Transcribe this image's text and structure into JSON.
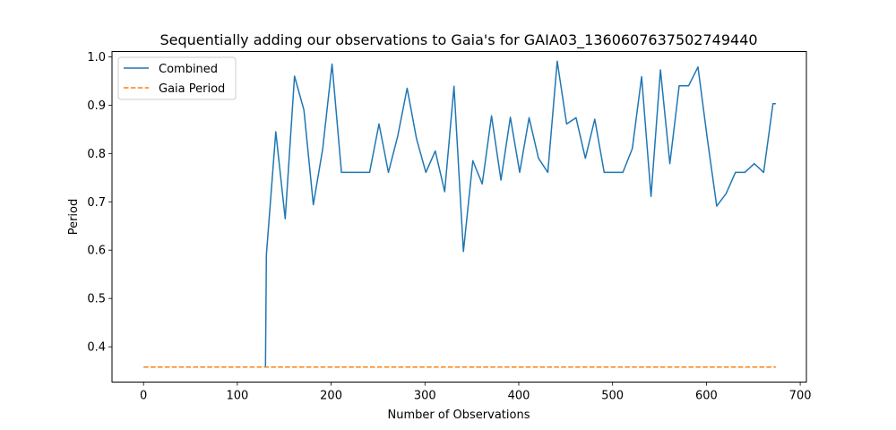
{
  "chart_data": {
    "type": "line",
    "title": "Sequentially adding our observations to Gaia's for GAIA03_1360607637502749440",
    "xlabel": "Number of Observations",
    "ylabel": "Period",
    "xlim": [
      -33.6,
      706.6
    ],
    "ylim": [
      0.327,
      1.011
    ],
    "xticks": [
      0,
      100,
      200,
      300,
      400,
      500,
      600,
      700
    ],
    "yticks": [
      0.4,
      0.5,
      0.6,
      0.7,
      0.8,
      0.9,
      1.0
    ],
    "xtick_labels": [
      "0",
      "100",
      "200",
      "300",
      "400",
      "500",
      "600",
      "700"
    ],
    "ytick_labels": [
      "0.4",
      "0.5",
      "0.6",
      "0.7",
      "0.8",
      "0.9",
      "1.0"
    ],
    "grid": false,
    "legend_position": "top-left",
    "series": [
      {
        "name": "Combined",
        "color": "#1f77b4",
        "style": "solid",
        "x": [
          130,
          131,
          141,
          151,
          161,
          171,
          181,
          191,
          201,
          211,
          221,
          231,
          241,
          251,
          261,
          271,
          281,
          291,
          301,
          311,
          321,
          331,
          341,
          351,
          361,
          371,
          381,
          391,
          401,
          411,
          421,
          431,
          441,
          451,
          461,
          471,
          481,
          491,
          501,
          511,
          521,
          531,
          541,
          551,
          561,
          571,
          581,
          591,
          601,
          611,
          621,
          631,
          641,
          651,
          661,
          671,
          674
        ],
        "y": [
          0.358,
          0.59,
          0.845,
          0.665,
          0.96,
          0.89,
          0.694,
          0.81,
          0.985,
          0.761,
          0.761,
          0.761,
          0.761,
          0.861,
          0.761,
          0.836,
          0.935,
          0.83,
          0.761,
          0.805,
          0.721,
          0.939,
          0.597,
          0.785,
          0.737,
          0.878,
          0.745,
          0.875,
          0.761,
          0.874,
          0.79,
          0.761,
          0.991,
          0.861,
          0.874,
          0.79,
          0.871,
          0.761,
          0.761,
          0.761,
          0.81,
          0.959,
          0.711,
          0.973,
          0.779,
          0.94,
          0.94,
          0.979,
          0.831,
          0.691,
          0.717,
          0.761,
          0.761,
          0.779,
          0.761,
          0.903,
          0.903
        ]
      },
      {
        "name": "Gaia Period",
        "color": "#ff7f0e",
        "style": "dashed",
        "x": [
          0,
          674
        ],
        "y": [
          0.358,
          0.358
        ]
      }
    ]
  }
}
